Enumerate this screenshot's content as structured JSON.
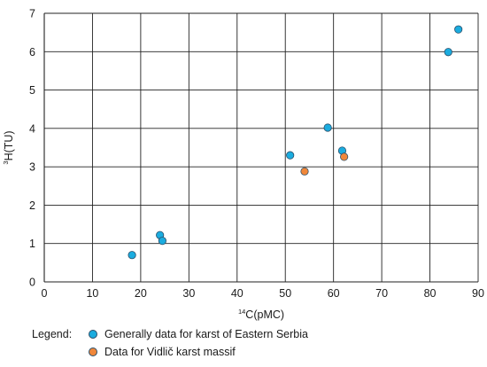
{
  "chart_data": {
    "type": "scatter",
    "title": "",
    "xlabel_sup": "14",
    "xlabel_main": "C(pMC)",
    "ylabel_sup": "3",
    "ylabel_main": "H(TU)",
    "xlim": [
      0,
      90
    ],
    "ylim": [
      0,
      7
    ],
    "x_ticks": [
      0,
      10,
      20,
      30,
      40,
      50,
      60,
      70,
      80,
      90
    ],
    "y_ticks": [
      0,
      1,
      2,
      3,
      4,
      5,
      6,
      7
    ],
    "grid": true,
    "legend_placement": "bottom-left",
    "series": [
      {
        "name": "Generally data for karst of Eastern Serbia",
        "color": "#1bacdf",
        "points": [
          {
            "x": 18.2,
            "y": 0.7
          },
          {
            "x": 24.0,
            "y": 1.22
          },
          {
            "x": 24.5,
            "y": 1.07
          },
          {
            "x": 51.0,
            "y": 3.3
          },
          {
            "x": 58.8,
            "y": 4.02
          },
          {
            "x": 61.8,
            "y": 3.42
          },
          {
            "x": 83.8,
            "y": 5.99
          },
          {
            "x": 85.9,
            "y": 6.58
          }
        ]
      },
      {
        "name": "Data for Vidlič karst massif",
        "color": "#f0873a",
        "points": [
          {
            "x": 54.0,
            "y": 2.88
          },
          {
            "x": 62.2,
            "y": 3.26
          }
        ]
      }
    ]
  },
  "legend": {
    "title": "Legend:"
  }
}
